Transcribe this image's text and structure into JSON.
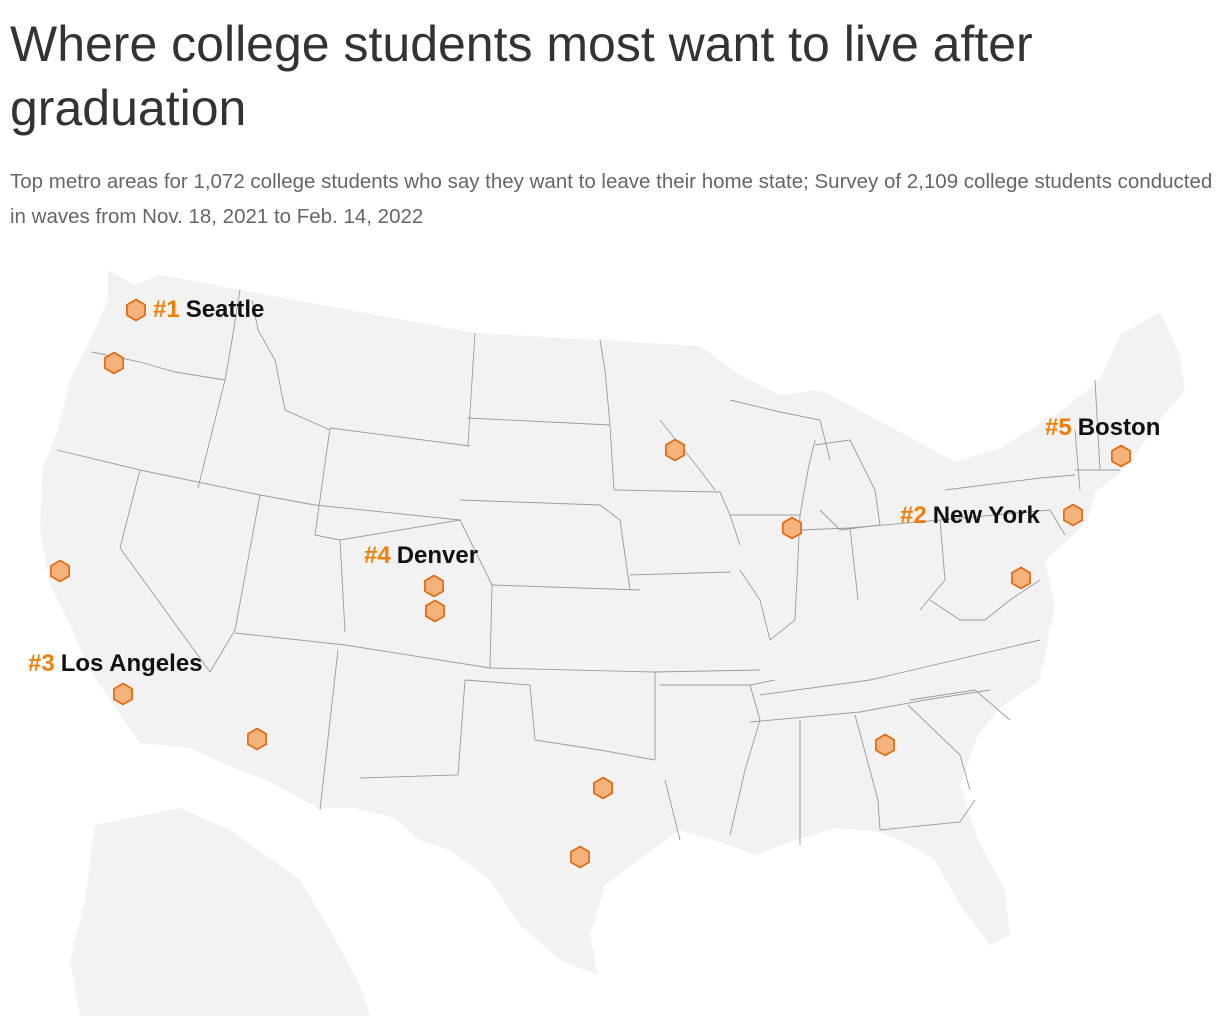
{
  "title": "Where college students most want to live after graduation",
  "subtitle": "Top metro areas for 1,072 college students who say they want to leave their home state; Survey of 2,109 college students conducted in waves from Nov. 18, 2021 to Feb. 14, 2022",
  "colors": {
    "land": "#f2f2f2",
    "border": "#9a9a9a",
    "marker_fill": "#f5b27a",
    "marker_stroke": "#e0640a",
    "rank_text": "#f07f09",
    "city_text": "#111111"
  },
  "map": {
    "region": "Contiguous United States, Alaska (partial)",
    "marker_icon": "hexagon-marker-icon",
    "labels": [
      {
        "rank": "#1",
        "city": "Seattle"
      },
      {
        "rank": "#2",
        "city": "New York"
      },
      {
        "rank": "#3",
        "city": "Los Angeles"
      },
      {
        "rank": "#4",
        "city": "Denver"
      },
      {
        "rank": "#5",
        "city": "Boston"
      }
    ]
  }
}
